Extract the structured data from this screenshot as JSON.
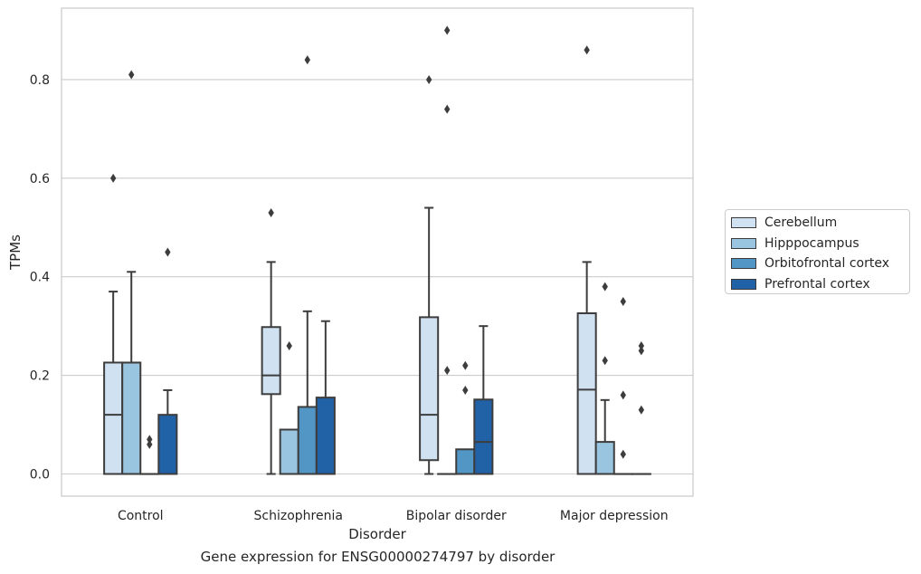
{
  "chart_data": {
    "type": "boxplot",
    "caption": "Gene expression for ENSG00000274797 by disorder",
    "xlabel": "Disorder",
    "ylabel": "TPMs",
    "ylim": [
      -0.045,
      0.945
    ],
    "yticks": [
      0.0,
      0.2,
      0.4,
      0.6,
      0.8
    ],
    "ytick_labels": [
      "0.0",
      "0.2",
      "0.4",
      "0.6",
      "0.8"
    ],
    "grid": "horizontal",
    "legend_position": "outside right",
    "categories": [
      "Control",
      "Schizophrenia",
      "Bipolar disorder",
      "Major depression"
    ],
    "series": [
      {
        "name": "Cerebellum",
        "color": "#d0e1f2",
        "boxes": [
          {
            "whislo": 0.0,
            "q1": 0.0,
            "med": 0.12,
            "q3": 0.226,
            "whishi": 0.37,
            "fliers": [
              0.6
            ]
          },
          {
            "whislo": 0.0,
            "q1": 0.162,
            "med": 0.2,
            "q3": 0.298,
            "whishi": 0.43,
            "fliers": [
              0.53
            ]
          },
          {
            "whislo": 0.0,
            "q1": 0.028,
            "med": 0.12,
            "q3": 0.318,
            "whishi": 0.54,
            "fliers": [
              0.8
            ]
          },
          {
            "whislo": 0.0,
            "q1": 0.0,
            "med": 0.171,
            "q3": 0.326,
            "whishi": 0.43,
            "fliers": [
              0.86
            ]
          }
        ]
      },
      {
        "name": "Hipppocampus",
        "color": "#9ac5e0",
        "boxes": [
          {
            "whislo": 0.0,
            "q1": 0.0,
            "med": 0.226,
            "q3": 0.226,
            "whishi": 0.41,
            "fliers": [
              0.81
            ]
          },
          {
            "whislo": 0.0,
            "q1": 0.0,
            "med": 0.0,
            "q3": 0.09,
            "whishi": 0.09,
            "fliers": [
              0.26
            ]
          },
          {
            "whislo": 0.0,
            "q1": 0.0,
            "med": 0.0,
            "q3": 0.0,
            "whishi": 0.0,
            "fliers": [
              0.21,
              0.74,
              0.9
            ]
          },
          {
            "whislo": 0.0,
            "q1": 0.0,
            "med": 0.0,
            "q3": 0.065,
            "whishi": 0.15,
            "fliers": [
              0.23,
              0.38
            ]
          }
        ]
      },
      {
        "name": "Orbitofrontal cortex",
        "color": "#5296c6",
        "boxes": [
          {
            "whislo": 0.0,
            "q1": 0.0,
            "med": 0.0,
            "q3": 0.0,
            "whishi": 0.0,
            "fliers": [
              0.06,
              0.07
            ]
          },
          {
            "whislo": 0.0,
            "q1": 0.0,
            "med": 0.0,
            "q3": 0.136,
            "whishi": 0.33,
            "fliers": [
              0.84
            ]
          },
          {
            "whislo": 0.0,
            "q1": 0.0,
            "med": 0.0,
            "q3": 0.05,
            "whishi": 0.05,
            "fliers": [
              0.17,
              0.22
            ]
          },
          {
            "whislo": 0.0,
            "q1": 0.0,
            "med": 0.0,
            "q3": 0.0,
            "whishi": 0.0,
            "fliers": [
              0.04,
              0.16,
              0.35
            ]
          }
        ]
      },
      {
        "name": "Prefrontal cortex",
        "color": "#2161a6",
        "boxes": [
          {
            "whislo": 0.0,
            "q1": 0.0,
            "med": 0.0,
            "q3": 0.12,
            "whishi": 0.17,
            "fliers": [
              0.45
            ]
          },
          {
            "whislo": 0.0,
            "q1": 0.0,
            "med": 0.0,
            "q3": 0.155,
            "whishi": 0.31,
            "fliers": []
          },
          {
            "whislo": 0.0,
            "q1": 0.0,
            "med": 0.065,
            "q3": 0.151,
            "whishi": 0.3,
            "fliers": []
          },
          {
            "whislo": 0.0,
            "q1": 0.0,
            "med": 0.0,
            "q3": 0.0,
            "whishi": 0.0,
            "fliers": [
              0.13,
              0.25,
              0.26
            ]
          }
        ]
      }
    ]
  }
}
